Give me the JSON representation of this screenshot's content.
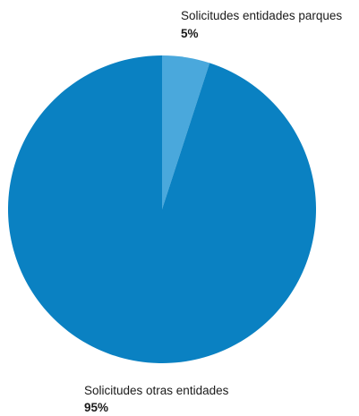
{
  "chart_data": {
    "type": "pie",
    "slices": [
      {
        "label": "Solicitudes entidades parques",
        "value": 5,
        "value_label": "5%",
        "color": "#4aa8dc"
      },
      {
        "label": "Solicitudes otras entidades",
        "value": 95,
        "value_label": "95%",
        "color": "#0a81c2"
      }
    ]
  }
}
